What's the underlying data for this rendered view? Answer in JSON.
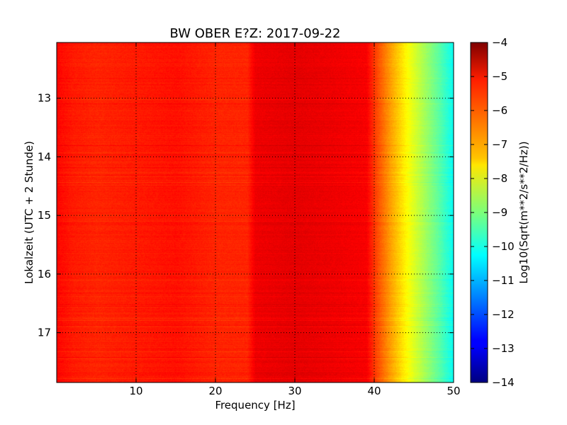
{
  "chart_data": {
    "type": "heatmap",
    "title": "BW OBER E?Z: 2017-09-22",
    "xlabel": "Frequency [Hz]",
    "ylabel": "Lokalzeit (UTC + 2 Stunde)",
    "xlim": [
      0,
      50
    ],
    "ylim": [
      17.85,
      12.05
    ],
    "y_inverted": true,
    "x_ticks": [
      10,
      20,
      30,
      40,
      50
    ],
    "x_tick_labels": [
      "10",
      "20",
      "30",
      "40",
      "50"
    ],
    "y_ticks": [
      13,
      14,
      15,
      16,
      17
    ],
    "y_tick_labels": [
      "13",
      "14",
      "15",
      "16",
      "17"
    ],
    "grid": true,
    "grid_style": "dotted",
    "colormap": "jet",
    "colorbar": {
      "label": "Log10(Sqrt(m**2/s**2/Hz))",
      "vmin": -14,
      "vmax": -4,
      "ticks": [
        -4,
        -5,
        -6,
        -7,
        -8,
        -9,
        -10,
        -11,
        -12,
        -13,
        -14
      ],
      "tick_labels": [
        "−4",
        "−5",
        "−6",
        "−7",
        "−8",
        "−9",
        "−10",
        "−11",
        "−12",
        "−13",
        "−14"
      ]
    },
    "spectral_profile": {
      "frequency_hz": [
        0,
        2,
        5,
        10,
        15,
        20,
        24,
        25,
        30,
        35,
        39,
        40,
        42,
        44,
        46,
        48,
        50
      ],
      "median_log10_amplitude": [
        -5.3,
        -5.5,
        -5.6,
        -5.5,
        -5.4,
        -5.6,
        -5.6,
        -5.1,
        -5.0,
        -5.1,
        -5.2,
        -5.8,
        -6.8,
        -7.7,
        -8.5,
        -9.3,
        -10.2
      ]
    }
  }
}
